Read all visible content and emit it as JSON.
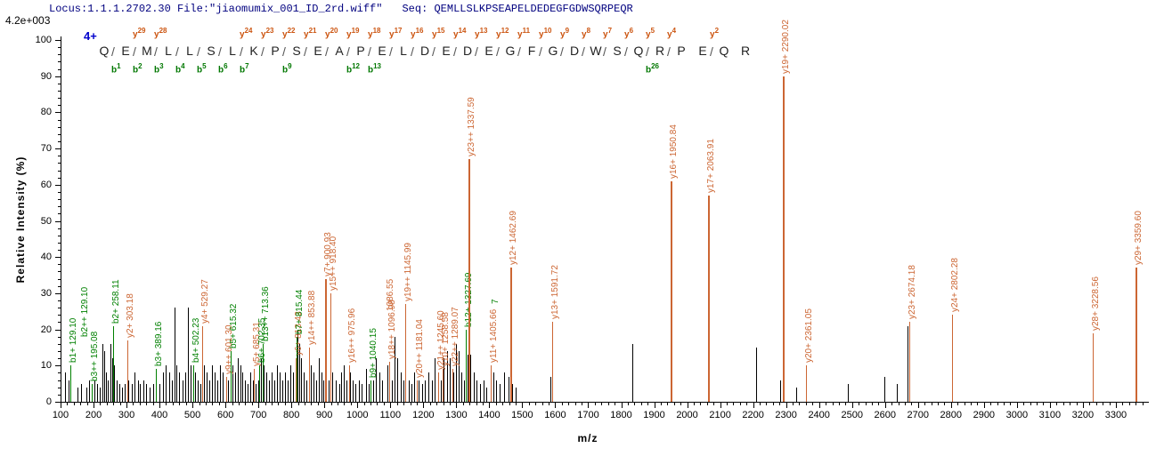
{
  "header": {
    "locus_file": "Locus:1.1.1.2702.30 File:\"jiaomumix_001_ID_2rd.wiff\"",
    "seq_label": "Seq:",
    "sequence": "QEMLLSLKPSEAPELDEDEGFGDWSQRPEQR",
    "max_intensity": "4.2e+003"
  },
  "sequence_panel": {
    "charge": "4+",
    "residues": [
      "Q",
      "E",
      "M",
      "L",
      "L",
      "S",
      "L",
      "K",
      "P",
      "S",
      "E",
      "A",
      "P",
      "E",
      "L",
      "D",
      "E",
      "D",
      "E",
      "G",
      "F",
      "G",
      "D",
      "W",
      "S",
      "Q",
      "R",
      "P",
      "E",
      "Q",
      "R"
    ],
    "y_ions": [
      {
        "after": 2,
        "label": "y29"
      },
      {
        "after": 3,
        "label": "y28"
      },
      {
        "after": 7,
        "label": "y24"
      },
      {
        "after": 8,
        "label": "y23"
      },
      {
        "after": 9,
        "label": "y22"
      },
      {
        "after": 10,
        "label": "y21"
      },
      {
        "after": 11,
        "label": "y20"
      },
      {
        "after": 12,
        "label": "y19"
      },
      {
        "after": 13,
        "label": "y18"
      },
      {
        "after": 14,
        "label": "y17"
      },
      {
        "after": 15,
        "label": "y16"
      },
      {
        "after": 16,
        "label": "y15"
      },
      {
        "after": 17,
        "label": "y14"
      },
      {
        "after": 18,
        "label": "y13"
      },
      {
        "after": 19,
        "label": "y12"
      },
      {
        "after": 20,
        "label": "y11"
      },
      {
        "after": 21,
        "label": "y10"
      },
      {
        "after": 22,
        "label": "y9"
      },
      {
        "after": 23,
        "label": "y8"
      },
      {
        "after": 24,
        "label": "y7"
      },
      {
        "after": 25,
        "label": "y6"
      },
      {
        "after": 26,
        "label": "y5"
      },
      {
        "after": 27,
        "label": "y4"
      },
      {
        "after": 29,
        "label": "y2"
      }
    ],
    "b_ions": [
      {
        "after": 1,
        "label": "b1"
      },
      {
        "after": 2,
        "label": "b2"
      },
      {
        "after": 3,
        "label": "b3"
      },
      {
        "after": 4,
        "label": "b4"
      },
      {
        "after": 5,
        "label": "b5"
      },
      {
        "after": 6,
        "label": "b6"
      },
      {
        "after": 7,
        "label": "b7"
      },
      {
        "after": 9,
        "label": "b9"
      },
      {
        "after": 12,
        "label": "b12"
      },
      {
        "after": 13,
        "label": "b13"
      },
      {
        "after": 26,
        "label": "b26"
      }
    ]
  },
  "colors": {
    "header_navy": "#00007f",
    "charge_blue": "#0000cc",
    "y_ion_orange": "#cc6633",
    "b_ion_green": "#008000",
    "unlabeled_black": "#000000"
  },
  "chart_data": {
    "type": "bar",
    "subtype": "ms2-peptide-fragment-spectrum",
    "xlabel": "m/z",
    "ylabel": "Relative Intensity (%)",
    "x_axis": {
      "min": 100,
      "max": 3300,
      "major_step": 100,
      "minor_step": 20,
      "minor_end": 3380
    },
    "y_axis": {
      "min": 0,
      "max": 100,
      "major_step": 10,
      "minor_step": 2
    },
    "labeled_peaks": [
      {
        "label": "b1+ 129.10",
        "mz": 129.1,
        "intensity": 10,
        "series": "b"
      },
      {
        "label": "b3++ 195.08",
        "mz": 195.08,
        "intensity": 5,
        "series": "b"
      },
      {
        "label": "b2+ 258.11",
        "mz": 258.11,
        "intensity": 21,
        "series": "b"
      },
      {
        "label": "y2+ 303.18",
        "mz": 303.18,
        "intensity": 17,
        "series": "y"
      },
      {
        "label": "b3+ 389.16",
        "mz": 389.16,
        "intensity": 9,
        "series": "b"
      },
      {
        "label": "b4+ 502.23",
        "mz": 502.23,
        "intensity": 10,
        "series": "b"
      },
      {
        "label": "y4+ 529.27",
        "mz": 529.27,
        "intensity": 21,
        "series": "y"
      },
      {
        "label": "y9++ 601.30",
        "mz": 601.3,
        "intensity": 7,
        "series": "y"
      },
      {
        "label": "b5+ 615.32",
        "mz": 615.32,
        "intensity": 14,
        "series": "b"
      },
      {
        "label": "y5+ 685.31",
        "mz": 685.31,
        "intensity": 9,
        "series": "y"
      },
      {
        "label": "b6+ 702.35",
        "mz": 702.35,
        "intensity": 10,
        "series": "b"
      },
      {
        "label": "b13++ 713.36",
        "mz": 713.36,
        "intensity": 16,
        "series": "b"
      },
      {
        "label": "y6+ 813.43",
        "mz": 813.43,
        "intensity": 12,
        "series": "y"
      },
      {
        "label": "b7+ 815.44",
        "mz": 815.44,
        "intensity": 18,
        "series": "b"
      },
      {
        "label": "y14++ 853.88",
        "mz": 853.88,
        "intensity": 15,
        "series": "y"
      },
      {
        "label": "y7+ 900.93",
        "mz": 900.93,
        "intensity": 34,
        "series": "y"
      },
      {
        "label": "y15++ 918.40",
        "mz": 918.4,
        "intensity": 30,
        "series": "y"
      },
      {
        "label": "y16++ 975.96",
        "mz": 975.96,
        "intensity": 10,
        "series": "y"
      },
      {
        "label": "b9+ 1040.15",
        "mz": 1040.15,
        "intensity": 6,
        "series": "b"
      },
      {
        "label": "y18++ 1096.98",
        "mz": 1096.98,
        "intensity": 11,
        "series": "y"
      },
      {
        "label": "y19++ 1145.99",
        "mz": 1145.99,
        "intensity": 27,
        "series": "y"
      },
      {
        "label": "y20++ 1181.04",
        "mz": 1181.04,
        "intensity": 6,
        "series": "y"
      },
      {
        "label": "y21++ 1245.60",
        "mz": 1245.6,
        "intensity": 8,
        "series": "y"
      },
      {
        "label": "y10+ 1258.58",
        "mz": 1258.58,
        "intensity": 9,
        "series": "y"
      },
      {
        "label": "y22++ 1289.07",
        "mz": 1289.07,
        "intensity": 9,
        "series": "y"
      },
      {
        "label": "b12+ 1327.69",
        "mz": 1327.69,
        "intensity": 20,
        "series": "b"
      },
      {
        "label": "y23++ 1337.59",
        "mz": 1337.59,
        "intensity": 67,
        "series": "y"
      },
      {
        "label": "y11+ 1405.66",
        "mz": 1405.66,
        "intensity": 10,
        "series": "y"
      },
      {
        "label": "y12+ 1462.69",
        "mz": 1462.69,
        "intensity": 37,
        "series": "y"
      },
      {
        "label": "y13+ 1591.72",
        "mz": 1591.72,
        "intensity": 22,
        "series": "y"
      },
      {
        "label": "y16+ 1950.84",
        "mz": 1950.84,
        "intensity": 61,
        "series": "y"
      },
      {
        "label": "y17+ 2063.91",
        "mz": 2063.91,
        "intensity": 57,
        "series": "y"
      },
      {
        "label": "y19+ 2290.02",
        "mz": 2290.02,
        "intensity": 90,
        "series": "y"
      },
      {
        "label": "y20+ 2361.05",
        "mz": 2361.05,
        "intensity": 10,
        "series": "y"
      },
      {
        "label": "y23+ 2674.18",
        "mz": 2674.18,
        "intensity": 22,
        "series": "y"
      },
      {
        "label": "y24+ 2802.28",
        "mz": 2802.28,
        "intensity": 24,
        "series": "y"
      },
      {
        "label": "y28+ 3228.56",
        "mz": 3228.56,
        "intensity": 19,
        "series": "y"
      },
      {
        "label": "y29+ 3359.60",
        "mz": 3359.6,
        "intensity": 37,
        "series": "y"
      }
    ],
    "extra_labels": [
      {
        "text": "b2++ 129.10",
        "mz": 129.1,
        "dx": 13,
        "label_at_intensity": 18,
        "series": "b"
      },
      {
        "text": "1086.55",
        "mz": 1086.55,
        "dx": 2,
        "label_at_intensity": 25,
        "series": "y"
      },
      {
        "text": "7",
        "mz": 1408.5,
        "dx": 0,
        "label_at_intensity": 27,
        "series": "b"
      }
    ],
    "unlabeled_peaks": [
      [
        113,
        8
      ],
      [
        124,
        6
      ],
      [
        150,
        4
      ],
      [
        163,
        5
      ],
      [
        178,
        4
      ],
      [
        186,
        6
      ],
      [
        194,
        5
      ],
      [
        203,
        6
      ],
      [
        210,
        5
      ],
      [
        218,
        4
      ],
      [
        226,
        16
      ],
      [
        232,
        14
      ],
      [
        238,
        8
      ],
      [
        244,
        6
      ],
      [
        252,
        16
      ],
      [
        256,
        12
      ],
      [
        262,
        10
      ],
      [
        270,
        6
      ],
      [
        278,
        5
      ],
      [
        285,
        4
      ],
      [
        295,
        5
      ],
      [
        306,
        6
      ],
      [
        315,
        5
      ],
      [
        325,
        8
      ],
      [
        334,
        6
      ],
      [
        341,
        5
      ],
      [
        352,
        6
      ],
      [
        360,
        5
      ],
      [
        370,
        4
      ],
      [
        380,
        5
      ],
      [
        390,
        6
      ],
      [
        399,
        5
      ],
      [
        410,
        8
      ],
      [
        420,
        10
      ],
      [
        430,
        8
      ],
      [
        438,
        6
      ],
      [
        445,
        26
      ],
      [
        452,
        10
      ],
      [
        460,
        8
      ],
      [
        470,
        6
      ],
      [
        478,
        8
      ],
      [
        487,
        26
      ],
      [
        494,
        10
      ],
      [
        508,
        8
      ],
      [
        516,
        6
      ],
      [
        523,
        5
      ],
      [
        536,
        10
      ],
      [
        544,
        8
      ],
      [
        552,
        6
      ],
      [
        560,
        10
      ],
      [
        568,
        8
      ],
      [
        576,
        6
      ],
      [
        584,
        10
      ],
      [
        592,
        8
      ],
      [
        608,
        6
      ],
      [
        622,
        10
      ],
      [
        630,
        8
      ],
      [
        638,
        12
      ],
      [
        645,
        10
      ],
      [
        652,
        8
      ],
      [
        660,
        6
      ],
      [
        668,
        5
      ],
      [
        676,
        8
      ],
      [
        684,
        6
      ],
      [
        692,
        5
      ],
      [
        700,
        6
      ],
      [
        708,
        12
      ],
      [
        716,
        10
      ],
      [
        724,
        8
      ],
      [
        732,
        6
      ],
      [
        740,
        8
      ],
      [
        748,
        6
      ],
      [
        756,
        10
      ],
      [
        764,
        8
      ],
      [
        772,
        6
      ],
      [
        780,
        8
      ],
      [
        788,
        6
      ],
      [
        796,
        10
      ],
      [
        804,
        8
      ],
      [
        812,
        10
      ],
      [
        818,
        20
      ],
      [
        824,
        16
      ],
      [
        830,
        12
      ],
      [
        838,
        8
      ],
      [
        846,
        6
      ],
      [
        858,
        10
      ],
      [
        866,
        8
      ],
      [
        874,
        6
      ],
      [
        882,
        12
      ],
      [
        890,
        8
      ],
      [
        896,
        6
      ],
      [
        906,
        8
      ],
      [
        914,
        6
      ],
      [
        925,
        8
      ],
      [
        934,
        6
      ],
      [
        944,
        5
      ],
      [
        952,
        8
      ],
      [
        960,
        10
      ],
      [
        968,
        6
      ],
      [
        978,
        8
      ],
      [
        986,
        6
      ],
      [
        995,
        5
      ],
      [
        1004,
        6
      ],
      [
        1012,
        5
      ],
      [
        1025,
        9
      ],
      [
        1035,
        5
      ],
      [
        1048,
        6
      ],
      [
        1057,
        12
      ],
      [
        1066,
        8
      ],
      [
        1075,
        6
      ],
      [
        1090,
        10
      ],
      [
        1104,
        6
      ],
      [
        1112,
        18
      ],
      [
        1122,
        12
      ],
      [
        1131,
        8
      ],
      [
        1140,
        6
      ],
      [
        1155,
        6
      ],
      [
        1164,
        5
      ],
      [
        1172,
        8
      ],
      [
        1185,
        6
      ],
      [
        1196,
        5
      ],
      [
        1205,
        6
      ],
      [
        1215,
        8
      ],
      [
        1225,
        6
      ],
      [
        1235,
        12
      ],
      [
        1244,
        8
      ],
      [
        1252,
        6
      ],
      [
        1262,
        12
      ],
      [
        1272,
        14
      ],
      [
        1281,
        12
      ],
      [
        1290,
        8
      ],
      [
        1298,
        16
      ],
      [
        1306,
        14
      ],
      [
        1315,
        8
      ],
      [
        1322,
        6
      ],
      [
        1334,
        13
      ],
      [
        1343,
        13
      ],
      [
        1352,
        8
      ],
      [
        1362,
        6
      ],
      [
        1372,
        5
      ],
      [
        1382,
        6
      ],
      [
        1392,
        4
      ],
      [
        1412,
        8
      ],
      [
        1421,
        6
      ],
      [
        1431,
        5
      ],
      [
        1444,
        8
      ],
      [
        1458,
        7
      ],
      [
        1470,
        5
      ],
      [
        1480,
        4
      ],
      [
        1585,
        7
      ],
      [
        1834,
        16
      ],
      [
        2210,
        15
      ],
      [
        2283,
        6
      ],
      [
        2330,
        4
      ],
      [
        2486,
        5
      ],
      [
        2597,
        7
      ],
      [
        2637,
        5
      ],
      [
        2668,
        21
      ]
    ]
  }
}
